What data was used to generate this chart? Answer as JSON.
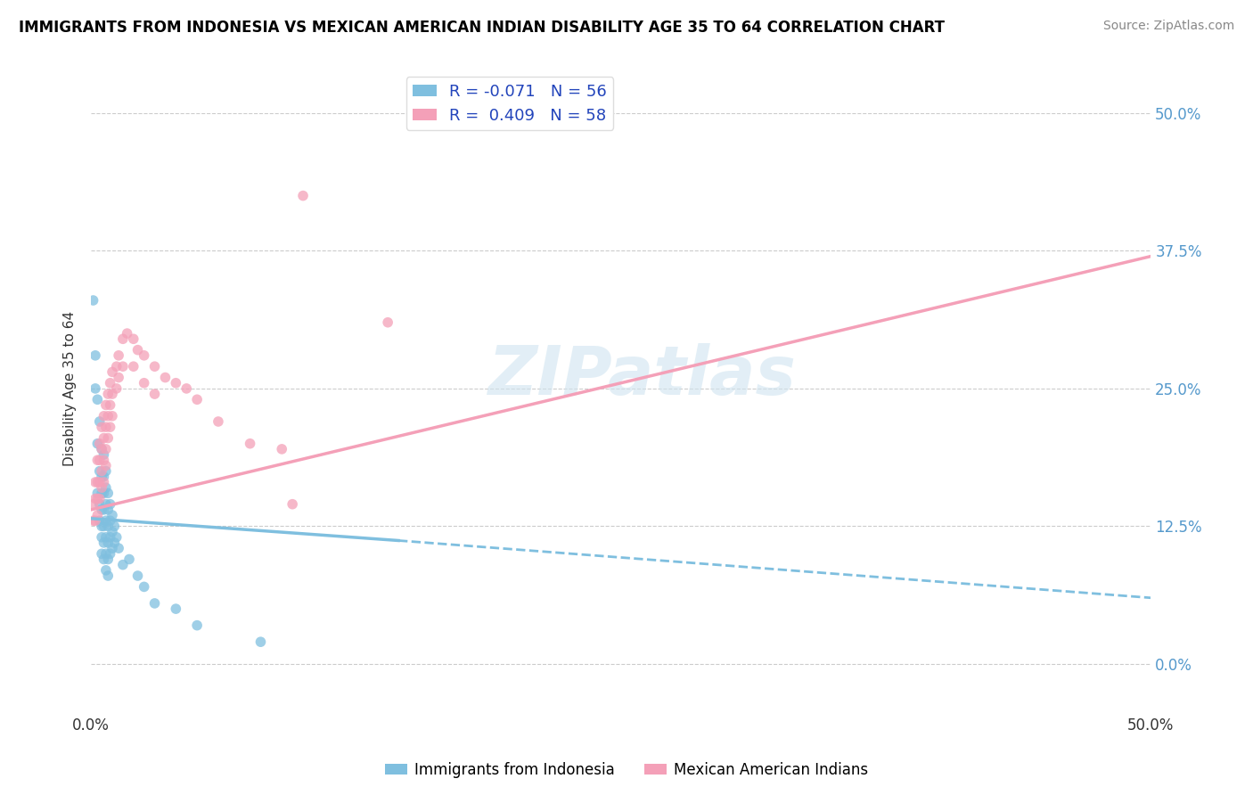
{
  "title": "IMMIGRANTS FROM INDONESIA VS MEXICAN AMERICAN INDIAN DISABILITY AGE 35 TO 64 CORRELATION CHART",
  "source": "Source: ZipAtlas.com",
  "ylabel": "Disability Age 35 to 64",
  "xlim": [
    0.0,
    0.5
  ],
  "ylim": [
    -0.04,
    0.54
  ],
  "yticks": [
    0.0,
    0.125,
    0.25,
    0.375,
    0.5
  ],
  "yticklabels_right": [
    "0.0%",
    "12.5%",
    "25.0%",
    "37.5%",
    "50.0%"
  ],
  "xticks": [
    0.0,
    0.5
  ],
  "xticklabels": [
    "0.0%",
    "50.0%"
  ],
  "legend_r1": "R = -0.071",
  "legend_n1": "N = 56",
  "legend_r2": "R =  0.409",
  "legend_n2": "N = 58",
  "legend_label1": "Immigrants from Indonesia",
  "legend_label2": "Mexican American Indians",
  "color_blue": "#7fbfdf",
  "color_pink": "#f4a0b8",
  "watermark": "ZIPatlas",
  "blue_scatter": [
    [
      0.001,
      0.33
    ],
    [
      0.002,
      0.28
    ],
    [
      0.002,
      0.25
    ],
    [
      0.003,
      0.24
    ],
    [
      0.003,
      0.2
    ],
    [
      0.003,
      0.155
    ],
    [
      0.004,
      0.22
    ],
    [
      0.004,
      0.175
    ],
    [
      0.004,
      0.145
    ],
    [
      0.004,
      0.13
    ],
    [
      0.005,
      0.195
    ],
    [
      0.005,
      0.17
    ],
    [
      0.005,
      0.155
    ],
    [
      0.005,
      0.14
    ],
    [
      0.005,
      0.125
    ],
    [
      0.005,
      0.115
    ],
    [
      0.005,
      0.1
    ],
    [
      0.006,
      0.19
    ],
    [
      0.006,
      0.17
    ],
    [
      0.006,
      0.155
    ],
    [
      0.006,
      0.14
    ],
    [
      0.006,
      0.125
    ],
    [
      0.006,
      0.11
    ],
    [
      0.006,
      0.095
    ],
    [
      0.007,
      0.175
    ],
    [
      0.007,
      0.16
    ],
    [
      0.007,
      0.145
    ],
    [
      0.007,
      0.13
    ],
    [
      0.007,
      0.115
    ],
    [
      0.007,
      0.1
    ],
    [
      0.007,
      0.085
    ],
    [
      0.008,
      0.155
    ],
    [
      0.008,
      0.14
    ],
    [
      0.008,
      0.125
    ],
    [
      0.008,
      0.11
    ],
    [
      0.008,
      0.095
    ],
    [
      0.008,
      0.08
    ],
    [
      0.009,
      0.145
    ],
    [
      0.009,
      0.13
    ],
    [
      0.009,
      0.115
    ],
    [
      0.009,
      0.1
    ],
    [
      0.01,
      0.135
    ],
    [
      0.01,
      0.12
    ],
    [
      0.01,
      0.105
    ],
    [
      0.011,
      0.125
    ],
    [
      0.011,
      0.11
    ],
    [
      0.012,
      0.115
    ],
    [
      0.013,
      0.105
    ],
    [
      0.015,
      0.09
    ],
    [
      0.018,
      0.095
    ],
    [
      0.022,
      0.08
    ],
    [
      0.025,
      0.07
    ],
    [
      0.03,
      0.055
    ],
    [
      0.04,
      0.05
    ],
    [
      0.05,
      0.035
    ],
    [
      0.08,
      0.02
    ]
  ],
  "pink_scatter": [
    [
      0.001,
      0.145
    ],
    [
      0.001,
      0.13
    ],
    [
      0.002,
      0.165
    ],
    [
      0.002,
      0.15
    ],
    [
      0.002,
      0.13
    ],
    [
      0.003,
      0.185
    ],
    [
      0.003,
      0.165
    ],
    [
      0.003,
      0.15
    ],
    [
      0.003,
      0.135
    ],
    [
      0.004,
      0.2
    ],
    [
      0.004,
      0.185
    ],
    [
      0.004,
      0.165
    ],
    [
      0.004,
      0.15
    ],
    [
      0.005,
      0.215
    ],
    [
      0.005,
      0.195
    ],
    [
      0.005,
      0.175
    ],
    [
      0.005,
      0.16
    ],
    [
      0.006,
      0.225
    ],
    [
      0.006,
      0.205
    ],
    [
      0.006,
      0.185
    ],
    [
      0.006,
      0.165
    ],
    [
      0.007,
      0.235
    ],
    [
      0.007,
      0.215
    ],
    [
      0.007,
      0.195
    ],
    [
      0.007,
      0.18
    ],
    [
      0.008,
      0.245
    ],
    [
      0.008,
      0.225
    ],
    [
      0.008,
      0.205
    ],
    [
      0.009,
      0.255
    ],
    [
      0.009,
      0.235
    ],
    [
      0.009,
      0.215
    ],
    [
      0.01,
      0.265
    ],
    [
      0.01,
      0.245
    ],
    [
      0.01,
      0.225
    ],
    [
      0.012,
      0.27
    ],
    [
      0.012,
      0.25
    ],
    [
      0.013,
      0.28
    ],
    [
      0.013,
      0.26
    ],
    [
      0.015,
      0.295
    ],
    [
      0.015,
      0.27
    ],
    [
      0.017,
      0.3
    ],
    [
      0.02,
      0.295
    ],
    [
      0.02,
      0.27
    ],
    [
      0.022,
      0.285
    ],
    [
      0.025,
      0.28
    ],
    [
      0.025,
      0.255
    ],
    [
      0.03,
      0.27
    ],
    [
      0.03,
      0.245
    ],
    [
      0.035,
      0.26
    ],
    [
      0.04,
      0.255
    ],
    [
      0.045,
      0.25
    ],
    [
      0.05,
      0.24
    ],
    [
      0.06,
      0.22
    ],
    [
      0.075,
      0.2
    ],
    [
      0.09,
      0.195
    ],
    [
      0.095,
      0.145
    ],
    [
      0.1,
      0.425
    ],
    [
      0.14,
      0.31
    ]
  ],
  "blue_line_solid": {
    "x0": 0.0,
    "x1": 0.145,
    "y0": 0.132,
    "y1": 0.112
  },
  "blue_line_dashed": {
    "x0": 0.145,
    "x1": 0.5,
    "y0": 0.112,
    "y1": 0.06
  },
  "pink_line": {
    "x0": 0.0,
    "x1": 0.5,
    "y0": 0.14,
    "y1": 0.37
  }
}
